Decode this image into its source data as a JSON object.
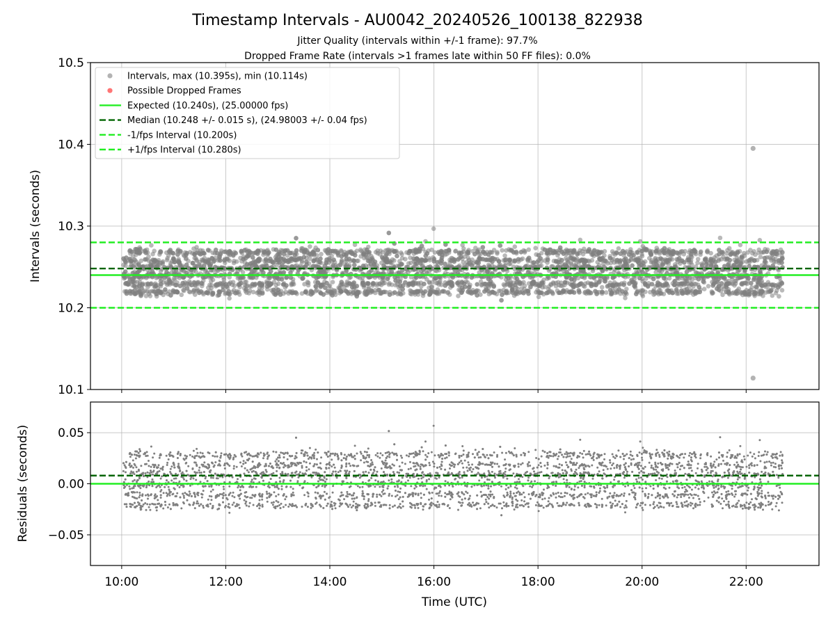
{
  "chart_data": [
    {
      "type": "scatter",
      "panel": "intervals",
      "title": "Timestamp Intervals - AU0042_20240526_100138_822938",
      "subtitle_lines": [
        "Jitter Quality (intervals within +/-1 frame): 97.7%",
        "Dropped Frame Rate (intervals >1 frames late within 50 FF files): 0.0%"
      ],
      "ylabel": "Intervals (seconds)",
      "xlim": [
        "09:24",
        "23:24"
      ],
      "ylim": [
        10.1,
        10.5
      ],
      "yticks": [
        "10.1",
        "10.2",
        "10.3",
        "10.4",
        "10.5"
      ],
      "grid": true,
      "legend_position": "upper-left",
      "series": [
        {
          "name": "Intervals, max (10.395s), min (10.114s)",
          "kind": "scatter",
          "color": "#808080",
          "x_range": [
            "10:02",
            "22:42"
          ],
          "center": 10.248,
          "levels": [
            10.219,
            10.229,
            10.239,
            10.249,
            10.258,
            10.268
          ],
          "spread": 0.015,
          "count": 4400,
          "outliers": [
            {
              "x": "22:08",
              "y": 10.395
            },
            {
              "x": "22:08",
              "y": 10.114
            }
          ]
        },
        {
          "name": "Possible Dropped Frames",
          "kind": "scatter",
          "color": "#ff6666",
          "points": []
        },
        {
          "name": "Expected (10.240s), (25.00000 fps)",
          "kind": "hline",
          "y": 10.24,
          "color": "#22ee22",
          "style": "solid"
        },
        {
          "name": "Median (10.248 +/- 0.015 s), (24.98003 +/- 0.04 fps)",
          "kind": "hline",
          "y": 10.248,
          "color": "#006400",
          "style": "dashed"
        },
        {
          "name": "-1/fps Interval (10.200s)",
          "kind": "hline",
          "y": 10.2,
          "color": "#22ee22",
          "style": "dashed"
        },
        {
          "name": "+1/fps Interval (10.280s)",
          "kind": "hline",
          "y": 10.28,
          "color": "#22ee22",
          "style": "dashed"
        }
      ]
    },
    {
      "type": "scatter",
      "panel": "residuals",
      "xlabel": "Time (UTC)",
      "ylabel": "Residuals (seconds)",
      "xlim": [
        "09:24",
        "23:24"
      ],
      "ylim": [
        -0.08,
        0.08
      ],
      "xticks": [
        "10:00",
        "12:00",
        "14:00",
        "16:00",
        "18:00",
        "20:00",
        "22:00"
      ],
      "yticks": [
        "−0.05",
        "0.00",
        "0.05"
      ],
      "ytick_values": [
        -0.05,
        0.0,
        0.05
      ],
      "grid": true,
      "series": [
        {
          "kind": "scatter",
          "color": "#808080",
          "center": 0.008,
          "levels": [
            -0.021,
            -0.011,
            -0.001,
            0.009,
            0.018,
            0.028
          ],
          "count": 4400
        },
        {
          "kind": "hline",
          "y": 0.0,
          "color": "#22ee22",
          "style": "solid"
        },
        {
          "kind": "hline",
          "y": 0.008,
          "color": "#006400",
          "style": "dashed"
        }
      ]
    }
  ]
}
